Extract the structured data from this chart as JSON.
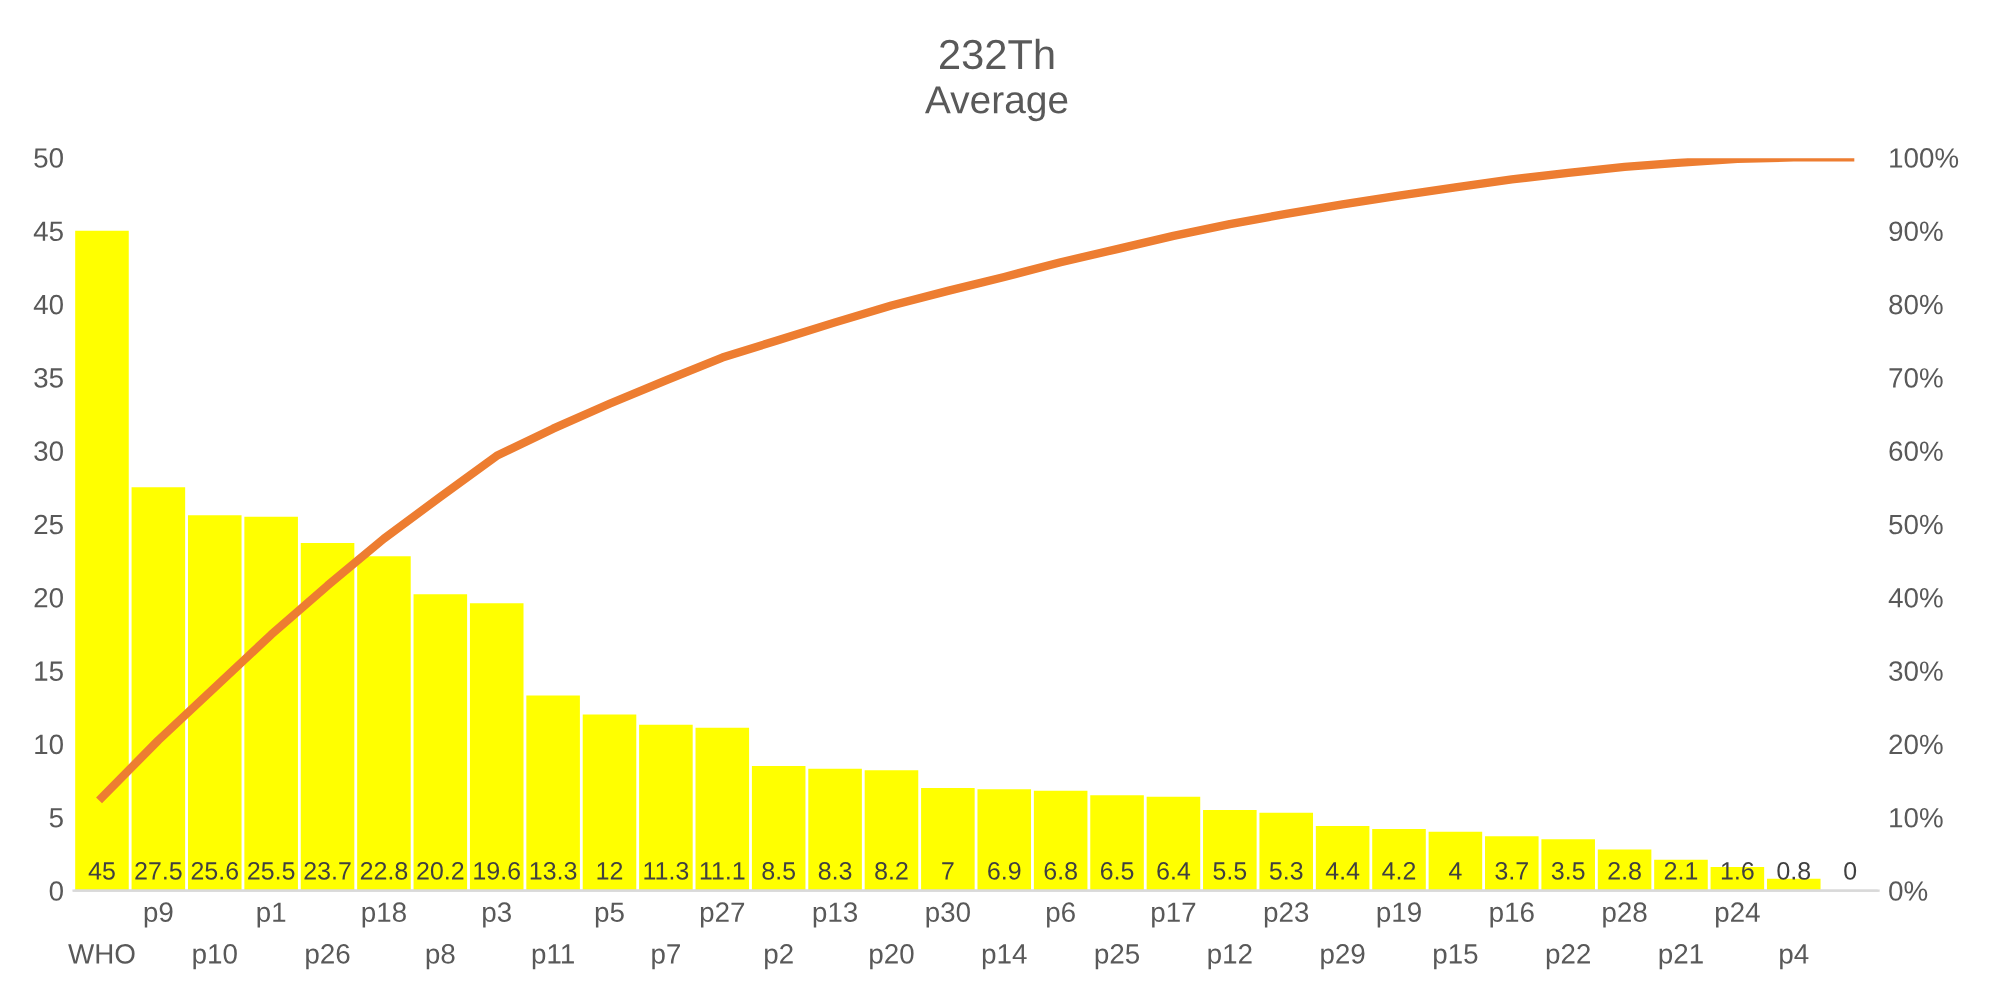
{
  "chart_data": {
    "type": "bar",
    "title": "232Th",
    "subtitle": "Average",
    "categories": [
      "WHO",
      "p9",
      "p10",
      "p1",
      "p26",
      "p18",
      "p8",
      "p3",
      "p11",
      "p5",
      "p7",
      "p27",
      "p2",
      "p13",
      "p20",
      "p30",
      "p14",
      "p6",
      "p25",
      "p17",
      "p12",
      "p23",
      "p29",
      "p19",
      "p15",
      "p16",
      "p22",
      "p28",
      "p21",
      "p24",
      "p4",
      null
    ],
    "series": [
      {
        "color": "#ffff00",
        "values": [
          45,
          27.5,
          25.6,
          25.5,
          23.7,
          22.8,
          20.2,
          19.6,
          13.3,
          12,
          11.3,
          11.1,
          8.5,
          8.3,
          8.2,
          7,
          6.9,
          6.8,
          6.5,
          6.4,
          5.5,
          5.3,
          4.4,
          4.2,
          4,
          3.7,
          3.5,
          2.8,
          2.1,
          1.6,
          0.8,
          0
        ],
        "value_labels": [
          "45",
          "27.5",
          "25.6",
          "25.5",
          "23.7",
          "22.8",
          "20.2",
          "19.6",
          "13.3",
          "12",
          "11.3",
          "11.1",
          "8.5",
          "8.3",
          "8.2",
          "7",
          "6.9",
          "6.8",
          "6.5",
          "6.4",
          "5.5",
          "5.3",
          "4.4",
          "4.2",
          "4",
          "3.7",
          "3.5",
          "2.8",
          "2.1",
          "1.6",
          "0.8",
          "0"
        ]
      },
      {
        "type": "line",
        "axis": "y2",
        "color": "#ed7d31",
        "values": [
          12.7,
          20.5,
          27.7,
          34.9,
          41.6,
          48.0,
          53.7,
          59.3,
          63.0,
          66.4,
          69.6,
          72.7,
          75.1,
          77.5,
          79.8,
          81.8,
          83.7,
          85.7,
          87.5,
          89.3,
          90.9,
          92.3,
          93.6,
          94.8,
          95.9,
          97.0,
          97.9,
          98.7,
          99.3,
          99.8,
          100,
          100
        ]
      }
    ],
    "ylim": [
      0,
      50
    ],
    "yticks": [
      0,
      5,
      10,
      15,
      20,
      25,
      30,
      35,
      40,
      45,
      50
    ],
    "y2lim": [
      0,
      100
    ],
    "y2ticks": [
      {
        "value": 0,
        "label": "0%"
      },
      {
        "value": 10,
        "label": "10%"
      },
      {
        "value": 20,
        "label": "20%"
      },
      {
        "value": 30,
        "label": "30%"
      },
      {
        "value": 40,
        "label": "40%"
      },
      {
        "value": 50,
        "label": "50%"
      },
      {
        "value": 60,
        "label": "60%"
      },
      {
        "value": 70,
        "label": "70%"
      },
      {
        "value": 80,
        "label": "80%"
      },
      {
        "value": 90,
        "label": "90%"
      },
      {
        "value": 100,
        "label": "100%"
      }
    ],
    "grid": false,
    "legend": false,
    "marker": "none",
    "line_style": "solid"
  }
}
